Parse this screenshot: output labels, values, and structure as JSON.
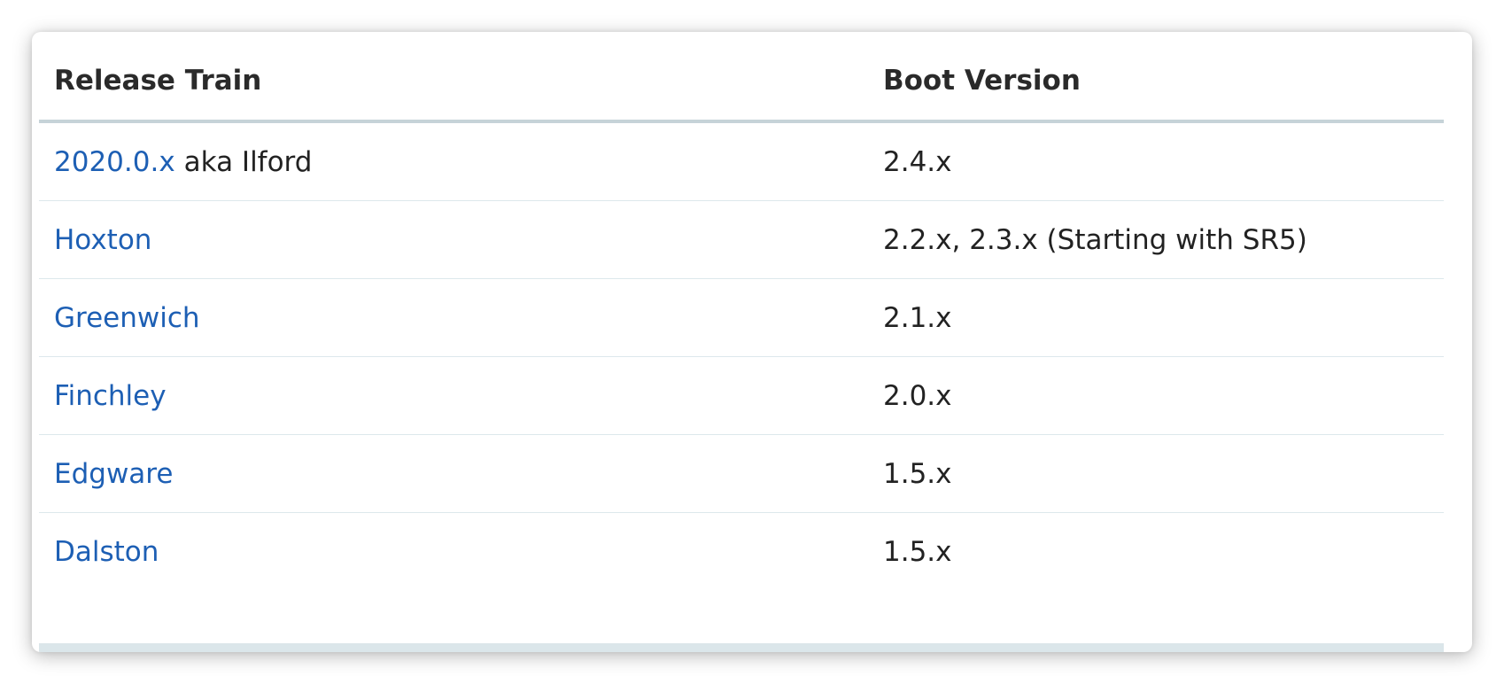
{
  "table": {
    "headers": [
      "Release Train",
      "Boot Version"
    ],
    "rows": [
      {
        "train": "2020.0.x",
        "train_suffix": "aka Ilford",
        "boot": "2.4.x"
      },
      {
        "train": "Hoxton",
        "train_suffix": "",
        "boot": "2.2.x, 2.3.x (Starting with SR5)"
      },
      {
        "train": "Greenwich",
        "train_suffix": "",
        "boot": "2.1.x"
      },
      {
        "train": "Finchley",
        "train_suffix": "",
        "boot": "2.0.x"
      },
      {
        "train": "Edgware",
        "train_suffix": "",
        "boot": "1.5.x"
      },
      {
        "train": "Dalston",
        "train_suffix": "",
        "boot": "1.5.x"
      }
    ]
  },
  "colors": {
    "link": "#1d5fb4",
    "text": "#222222",
    "header_rule": "#c6d3d8",
    "row_rule": "#dde8ec"
  }
}
